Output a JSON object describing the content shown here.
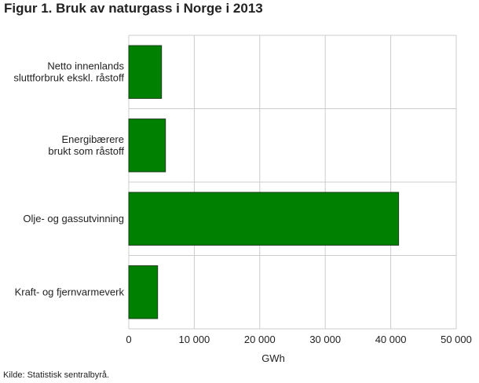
{
  "title": "Figur 1. Bruk av naturgass i Norge i 2013",
  "source": "Kilde: Statistisk sentralbyrå.",
  "colors": {
    "bar": "#008000",
    "bar_border": "#1e3d1e",
    "grid": "#cccccc"
  },
  "chart_data": {
    "type": "bar",
    "orientation": "horizontal",
    "title": "Figur 1. Bruk av naturgass i Norge i 2013",
    "categories": [
      [
        "Netto innenlands",
        "sluttforbruk ekskl. råstoff"
      ],
      [
        "Energibærere",
        "brukt som råstoff"
      ],
      [
        "Olje- og gassutvinning"
      ],
      [
        "Kraft- og fjernvarmeverk"
      ]
    ],
    "values": [
      5000,
      5600,
      41200,
      4400
    ],
    "xlabel": "GWh",
    "ylabel": "",
    "xlim": [
      0,
      50000
    ],
    "xticks": [
      0,
      10000,
      20000,
      30000,
      40000,
      50000
    ],
    "xtick_labels": [
      "0",
      "10 000",
      "20 000",
      "30 000",
      "40 000",
      "50 000"
    ],
    "grid": true
  }
}
